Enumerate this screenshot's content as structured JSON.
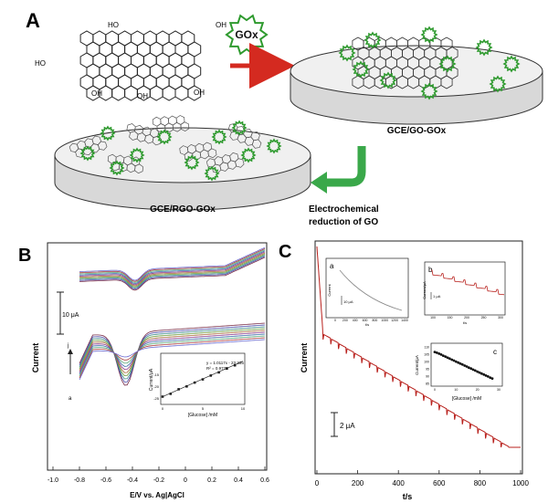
{
  "panel_a": {
    "label": "A",
    "gox_badge": "GOx",
    "plate_go": "GCE/GO-GOx",
    "plate_rgo": "GCE/RGO-GOx",
    "step_line1": "Electrochemical",
    "step_line2": "reduction of GO",
    "groups": {
      "oh": "OH",
      "o": "O",
      "cooh": "HO",
      "cooh2": "O"
    },
    "colors": {
      "enzyme": "#2e9a2e",
      "arrow_red": "#d42a20",
      "arrow_green": "#3aa84a"
    }
  },
  "panel_b": {
    "label": "B",
    "ylabel": "Current",
    "xlabel": "E/V vs. Ag|AgCl",
    "xticks": [
      "-1.0",
      "-0.8",
      "-0.6",
      "-0.4",
      "-0.2",
      "0",
      "0.2",
      "0.4",
      "0.6"
    ],
    "scalebar": "10 μA",
    "arrow_j": "j",
    "arrow_a": "a",
    "inset": {
      "equation": "y = 1.0117x - 23.335",
      "r2": "R² = 0.9772",
      "ylabel": "Current/μA",
      "xlabel": "[Glucose] /mM",
      "yticks": [
        "-15",
        "-20",
        "-25"
      ],
      "xticks": [
        "0",
        "5",
        "10"
      ]
    }
  },
  "panel_c": {
    "label": "C",
    "ylabel": "Current",
    "xlabel": "t/s",
    "xticks": [
      "0",
      "200",
      "400",
      "600",
      "800",
      "1000"
    ],
    "scalebar": "2 μA",
    "inset_a": {
      "label": "a",
      "ylabel": "Current",
      "scalebar": "10 μA",
      "xlabel": "t/s",
      "xticks": [
        "0",
        "200",
        "400",
        "600",
        "800",
        "1000",
        "1200",
        "1400"
      ]
    },
    "inset_b": {
      "label": "b",
      "ylabel": "Current/μA",
      "scalebar": "1 μA",
      "xlabel": "t/s",
      "xticks": [
        "100",
        "150",
        "200",
        "250",
        "300"
      ]
    },
    "inset_c": {
      "label": "c",
      "ylabel": "Current/μA",
      "xlabel": "[Glucose] /mM",
      "yticks": [
        "110",
        "105",
        "100",
        "95",
        "90",
        "85"
      ],
      "xticks": [
        "0",
        "10",
        "20",
        "30"
      ]
    },
    "colors": {
      "trace": "#b8201c"
    }
  },
  "chart_data": [
    {
      "type": "line",
      "panel": "B",
      "xlabel": "E/V vs. Ag|AgCl",
      "ylabel": "Current",
      "xlim": [
        -1.0,
        0.6
      ],
      "xticks": [
        -1.0,
        -0.8,
        -0.6,
        -0.4,
        -0.2,
        0,
        0.2,
        0.4,
        0.6
      ],
      "series_count": 10,
      "series_labels": [
        "a",
        "j"
      ]
    },
    {
      "type": "scatter",
      "panel": "B-inset",
      "xlabel": "[Glucose] /mM",
      "ylabel": "Current/μA",
      "x": [
        0,
        1,
        2,
        3,
        4,
        5,
        6,
        7,
        8,
        9
      ],
      "y": [
        -23.3,
        -22.5,
        -21.2,
        -20.4,
        -19.3,
        -18.4,
        -17.3,
        -16.4,
        -15.3,
        -14.4
      ],
      "fit": "y = 1.0117x - 23.335",
      "r2": 0.9772,
      "xlim": [
        0,
        10
      ],
      "ylim": [
        -25,
        -12
      ]
    },
    {
      "type": "line",
      "panel": "C",
      "xlabel": "t/s",
      "ylabel": "Current",
      "xlim": [
        0,
        1000
      ],
      "xticks": [
        0,
        200,
        400,
        600,
        800,
        1000
      ]
    },
    {
      "type": "line",
      "panel": "C-inset-a",
      "xlabel": "t/s",
      "ylabel": "Current",
      "xlim": [
        0,
        1400
      ]
    },
    {
      "type": "line",
      "panel": "C-inset-b",
      "xlabel": "t/s",
      "ylabel": "Current/μA",
      "xlim": [
        100,
        300
      ]
    },
    {
      "type": "scatter",
      "panel": "C-inset-c",
      "xlabel": "[Glucose] /mM",
      "ylabel": "Current/μA",
      "x": [
        0,
        1,
        2,
        3,
        4,
        5,
        6,
        7,
        8,
        9,
        10,
        11,
        12,
        13,
        14,
        15,
        16,
        17,
        18,
        19,
        20,
        21,
        22,
        23,
        24,
        25,
        26,
        27
      ],
      "y": [
        105.5,
        105,
        104.4,
        103.8,
        103.1,
        102.5,
        101.8,
        101.2,
        100.5,
        99.9,
        99.2,
        98.6,
        97.9,
        97.3,
        96.6,
        96,
        95.3,
        94.7,
        94,
        93.4,
        92.7,
        92.1,
        91.4,
        90.8,
        90.1,
        89.5,
        88.8,
        88.2
      ],
      "xlim": [
        0,
        30
      ],
      "ylim": [
        85,
        110
      ]
    }
  ]
}
